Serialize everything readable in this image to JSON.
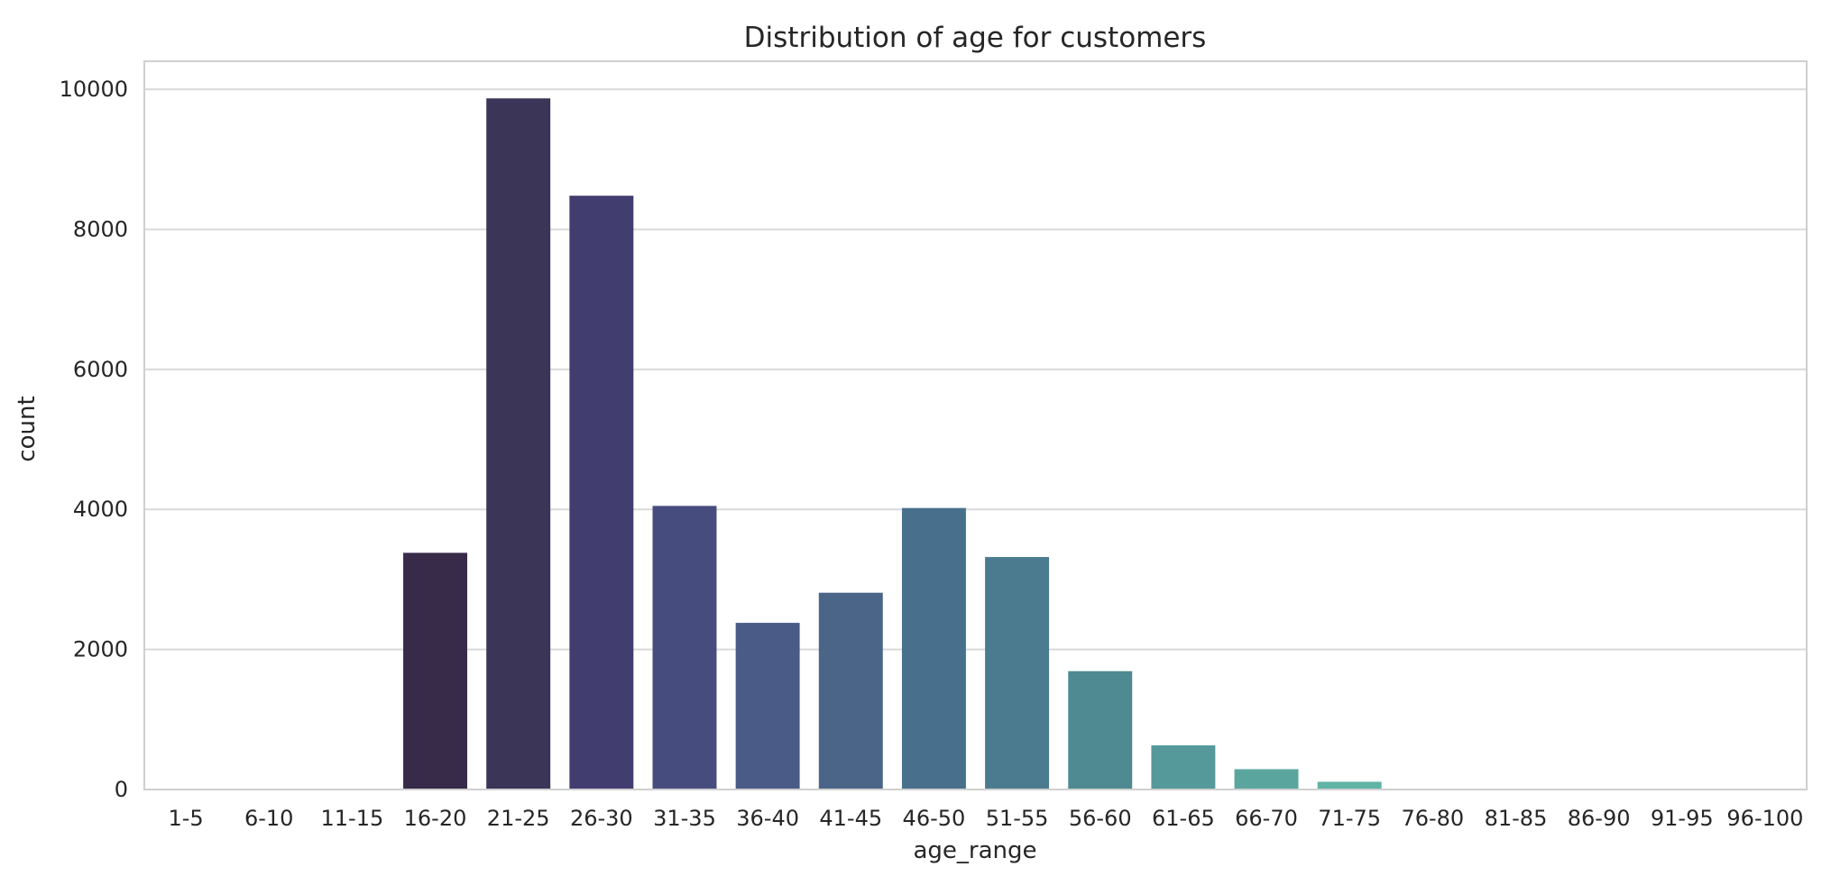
{
  "chart_data": {
    "type": "bar",
    "title": "Distribution of age for customers",
    "xlabel": "age_range",
    "ylabel": "count",
    "ylim": [
      0,
      10400
    ],
    "yticks": [
      0,
      2000,
      4000,
      6000,
      8000,
      10000
    ],
    "grid": true,
    "categories": [
      "1-5",
      "6-10",
      "11-15",
      "16-20",
      "21-25",
      "26-30",
      "31-35",
      "36-40",
      "41-45",
      "46-50",
      "51-55",
      "56-60",
      "61-65",
      "66-70",
      "71-75",
      "76-80",
      "81-85",
      "86-90",
      "91-95",
      "96-100"
    ],
    "values": [
      0,
      0,
      0,
      3380,
      9870,
      8480,
      4050,
      2380,
      2810,
      4020,
      3320,
      1690,
      630,
      290,
      110,
      0,
      0,
      0,
      0,
      0
    ],
    "colors": [
      "#2b1e3e",
      "#2f2343",
      "#322947",
      "#372b49",
      "#3b3557",
      "#413e6f",
      "#474c7e",
      "#495b86",
      "#4b6588",
      "#48708d",
      "#4b7b8e",
      "#4f8a93",
      "#56999b",
      "#5aa69f",
      "#61b3a4",
      "#67bea9",
      "#73c8ad",
      "#85d2b3",
      "#9ad9ba",
      "#b0e0c4"
    ]
  }
}
